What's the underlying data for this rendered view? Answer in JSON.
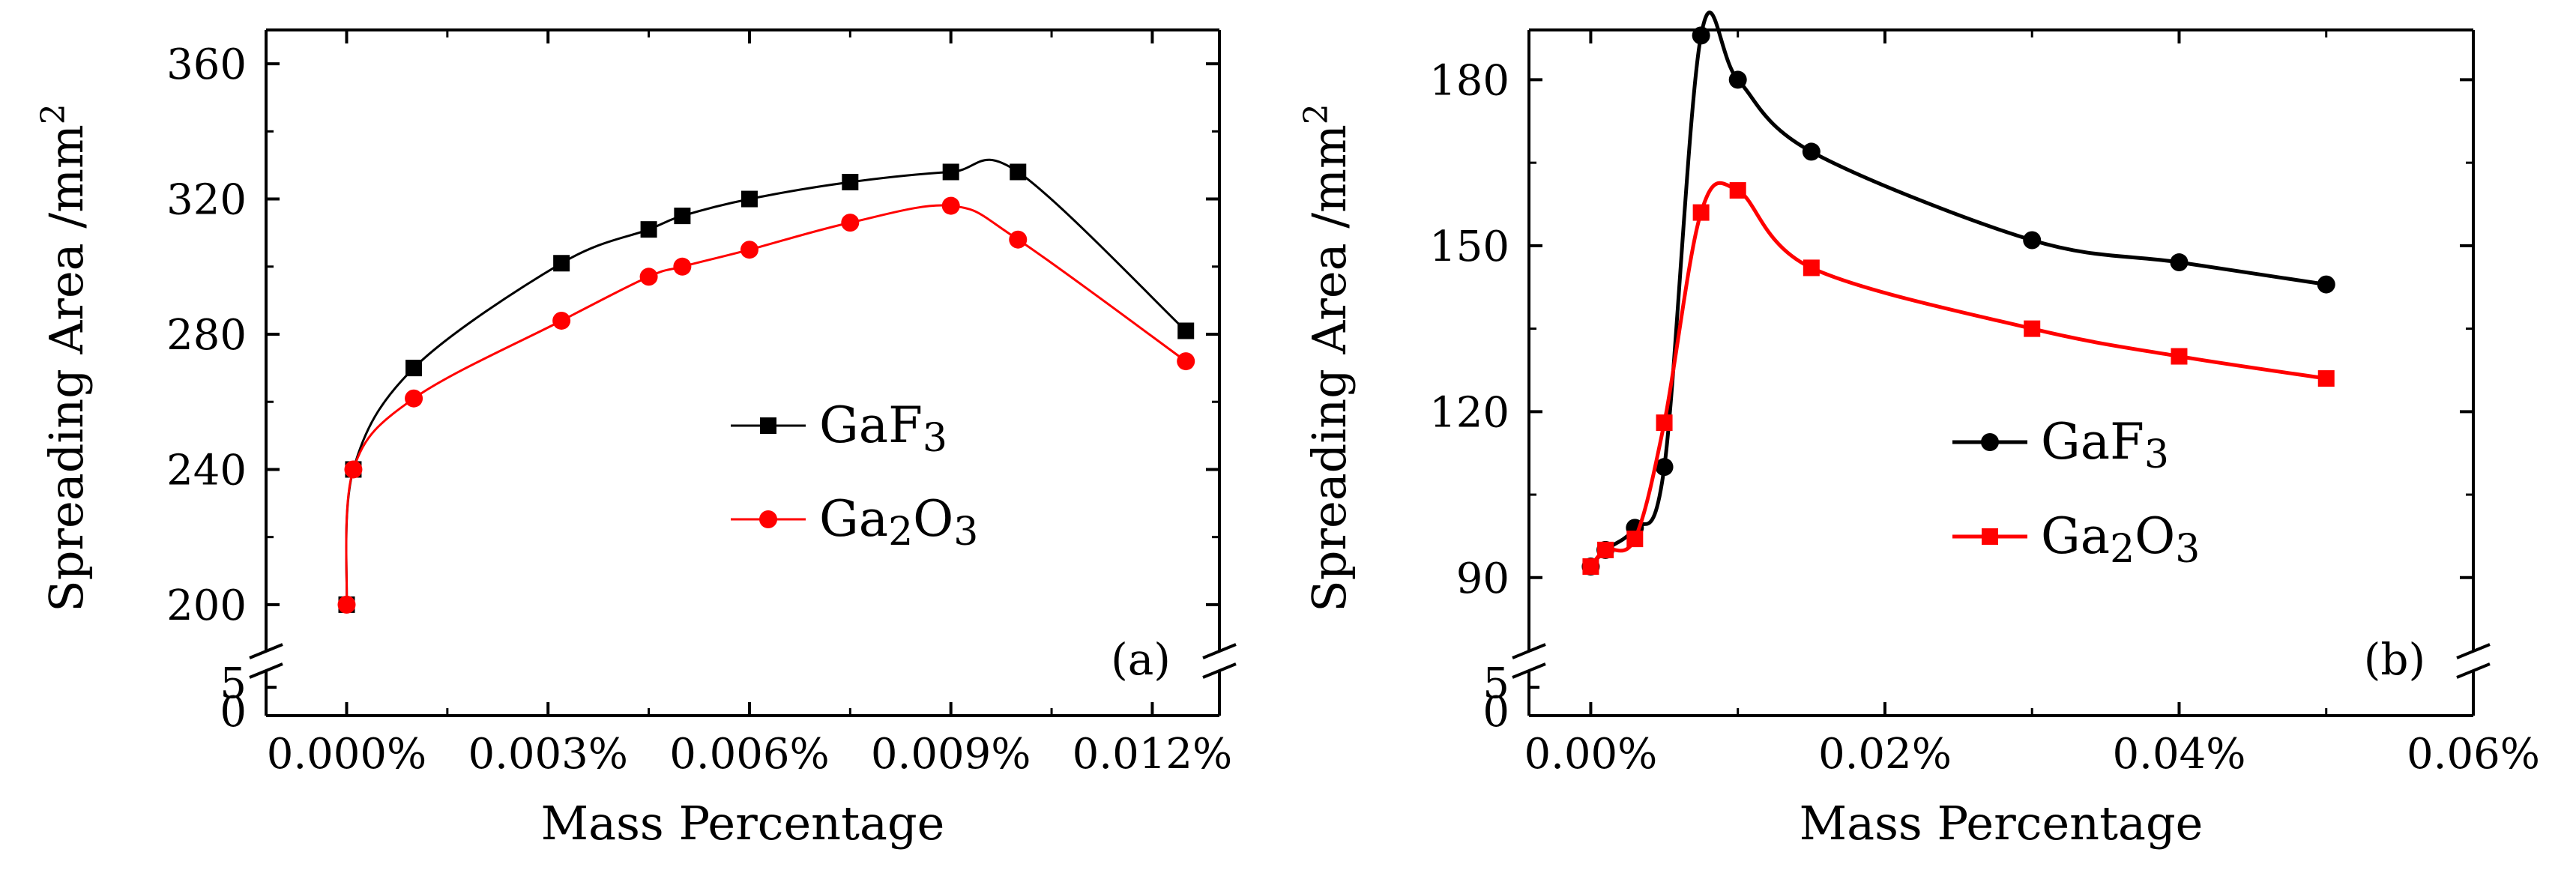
{
  "chart_data": [
    {
      "type": "line",
      "panel_label": "(a)",
      "xlabel": "Mass Percentage",
      "ylabel": "Spreading Area /mm",
      "ylabel_sup": "2",
      "xlim": [
        -0.0012,
        0.013
      ],
      "ylim_upper": [
        190,
        370
      ],
      "ylim_lower": [
        0,
        7
      ],
      "x_ticks": [
        0,
        0.003,
        0.006,
        0.009,
        0.012
      ],
      "x_tick_labels": [
        "0.000%",
        "0.003%",
        "0.006%",
        "0.009%",
        "0.012%"
      ],
      "y_ticks": [
        200,
        240,
        280,
        320,
        360
      ],
      "y_tick_labels": [
        "200",
        "240",
        "280",
        "320",
        "360"
      ],
      "y_ticks_lower": [
        0,
        5
      ],
      "y_tick_labels_lower": [
        "0",
        "5"
      ],
      "axis_break": true,
      "series": [
        {
          "name": "GaF3",
          "legend_main": "GaF",
          "legend_sub": "3",
          "color": "#000000",
          "marker": "square",
          "x": [
            0,
            0.0001,
            0.001,
            0.0032,
            0.0045,
            0.005,
            0.006,
            0.0075,
            0.009,
            0.01,
            0.0125
          ],
          "values": [
            200,
            240,
            270,
            301,
            311,
            315,
            320,
            325,
            328,
            328,
            281
          ]
        },
        {
          "name": "Ga2O3",
          "legend_main": "Ga",
          "legend_sub": "2",
          "legend_main2": "O",
          "legend_sub2": "3",
          "color": "#ff0000",
          "marker": "circle",
          "x": [
            0,
            0.0001,
            0.001,
            0.0032,
            0.0045,
            0.005,
            0.006,
            0.0075,
            0.009,
            0.01,
            0.0125
          ],
          "values": [
            200,
            240,
            261,
            284,
            297,
            300,
            305,
            313,
            318,
            308,
            272
          ]
        }
      ]
    },
    {
      "type": "line",
      "panel_label": "(b)",
      "xlabel": "Mass Percentage",
      "ylabel": "Spreading Area /mm",
      "ylabel_sup": "2",
      "xlim": [
        -0.0042,
        0.06
      ],
      "ylim_upper": [
        79,
        189
      ],
      "ylim_lower": [
        0,
        7
      ],
      "x_ticks": [
        0,
        0.02,
        0.04,
        0.06
      ],
      "x_tick_labels": [
        "0.00%",
        "0.02%",
        "0.04%",
        "0.06%"
      ],
      "y_ticks": [
        90,
        120,
        150,
        180
      ],
      "y_tick_labels": [
        "90",
        "120",
        "150",
        "180"
      ],
      "y_ticks_lower": [
        0,
        5
      ],
      "y_tick_labels_lower": [
        "0",
        "5"
      ],
      "axis_break": true,
      "series": [
        {
          "name": "GaF3",
          "legend_main": "GaF",
          "legend_sub": "3",
          "color": "#000000",
          "marker": "circle",
          "x": [
            0,
            0.001,
            0.003,
            0.005,
            0.0075,
            0.01,
            0.015,
            0.03,
            0.04,
            0.05
          ],
          "values": [
            92,
            95,
            99,
            110,
            188,
            180,
            167,
            151,
            147,
            143
          ]
        },
        {
          "name": "Ga2O3",
          "legend_main": "Ga",
          "legend_sub": "2",
          "legend_main2": "O",
          "legend_sub2": "3",
          "color": "#ff0000",
          "marker": "square",
          "x": [
            0,
            0.001,
            0.003,
            0.005,
            0.0075,
            0.01,
            0.015,
            0.03,
            0.04,
            0.05
          ],
          "values": [
            92,
            95,
            97,
            118,
            156,
            160,
            146,
            135,
            130,
            126
          ]
        }
      ]
    }
  ]
}
